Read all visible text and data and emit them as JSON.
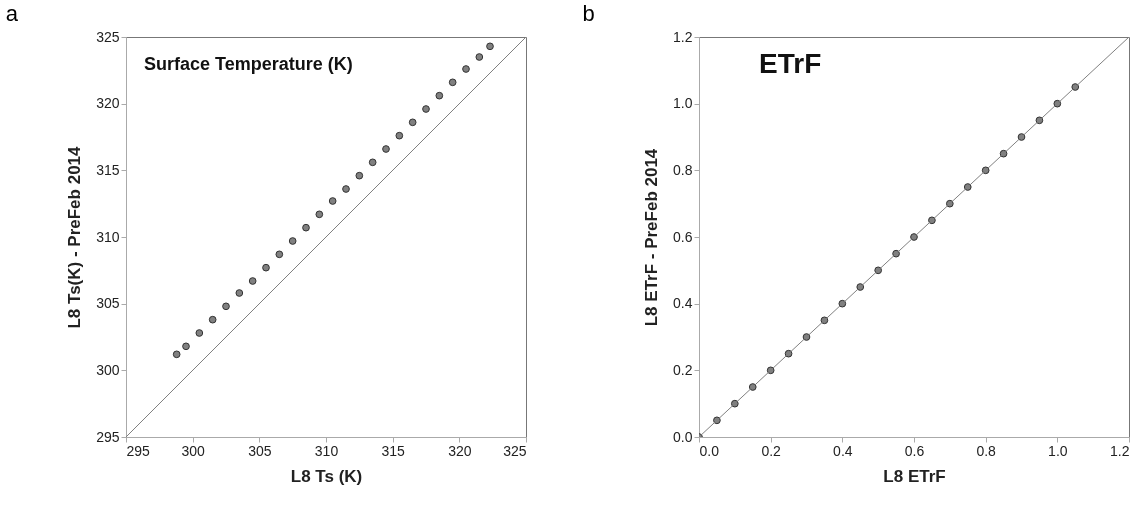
{
  "chart_data": [
    {
      "type": "scatter",
      "title": "a",
      "xlabel": "L8  Ts (K)",
      "ylabel": "L8  Ts(K) - PreFeb 2014",
      "annotations": [
        "Surface Temperature (K)"
      ],
      "xlim": [
        295,
        325
      ],
      "ylim": [
        295,
        325
      ],
      "xticks": [
        295,
        300,
        305,
        310,
        315,
        320,
        325
      ],
      "yticks": [
        295,
        300,
        305,
        310,
        315,
        320,
        325
      ],
      "grid": false,
      "series": [
        {
          "marker": "circle",
          "color": "#808080",
          "x": [
            298.8,
            299.5,
            300.5,
            301.5,
            302.5,
            303.5,
            304.5,
            305.5,
            306.5,
            307.5,
            308.5,
            309.5,
            310.5,
            311.5,
            312.5,
            313.5,
            314.5,
            315.5,
            316.5,
            317.5,
            318.5,
            319.5,
            320.5,
            321.5,
            322.3
          ],
          "values": [
            301.2,
            301.8,
            302.8,
            303.8,
            304.8,
            305.8,
            306.7,
            307.7,
            308.7,
            309.7,
            310.7,
            311.7,
            312.7,
            313.6,
            314.6,
            315.6,
            316.6,
            317.6,
            318.6,
            319.6,
            320.6,
            321.6,
            322.6,
            323.5,
            324.3
          ]
        },
        {
          "type": "line",
          "color": "#808080",
          "x": [
            295,
            325
          ],
          "values": [
            295,
            325
          ]
        }
      ]
    },
    {
      "type": "scatter",
      "title": "b",
      "xlabel": "L8 ETrF",
      "ylabel": "L8  ETrF - PreFeb 2014",
      "annotations": [
        "ETrF"
      ],
      "xlim": [
        0,
        1.2
      ],
      "ylim": [
        0,
        1.2
      ],
      "xticks": [
        {
          "value": 0,
          "label": "0.0"
        },
        {
          "value": 0.2,
          "label": "0.2"
        },
        {
          "value": 0.4,
          "label": "0.4"
        },
        {
          "value": 0.6,
          "label": "0.6"
        },
        {
          "value": 0.8,
          "label": "0.8"
        },
        {
          "value": 1,
          "label": "1.0"
        },
        {
          "value": 1.2,
          "label": "1.2"
        }
      ],
      "yticks": [
        {
          "value": 0,
          "label": "0.0"
        },
        {
          "value": 0.2,
          "label": "0.2"
        },
        {
          "value": 0.4,
          "label": "0.4"
        },
        {
          "value": 0.6,
          "label": "0.6"
        },
        {
          "value": 0.8,
          "label": "0.8"
        },
        {
          "value": 1,
          "label": "1.0"
        },
        {
          "value": 1.2,
          "label": "1.2"
        }
      ],
      "grid": false,
      "series": [
        {
          "marker": "circle",
          "color": "#808080",
          "x": [
            0.0,
            0.05,
            0.1,
            0.15,
            0.2,
            0.25,
            0.3,
            0.35,
            0.4,
            0.45,
            0.5,
            0.55,
            0.6,
            0.65,
            0.7,
            0.75,
            0.8,
            0.85,
            0.9,
            0.95,
            1.0,
            1.05
          ],
          "values": [
            0.0,
            0.05,
            0.1,
            0.15,
            0.2,
            0.25,
            0.3,
            0.35,
            0.4,
            0.45,
            0.5,
            0.55,
            0.6,
            0.65,
            0.7,
            0.75,
            0.8,
            0.85,
            0.9,
            0.95,
            1.0,
            1.05
          ]
        },
        {
          "type": "line",
          "color": "#808080",
          "x": [
            0,
            1.2
          ],
          "values": [
            0,
            1.2
          ]
        }
      ]
    }
  ]
}
